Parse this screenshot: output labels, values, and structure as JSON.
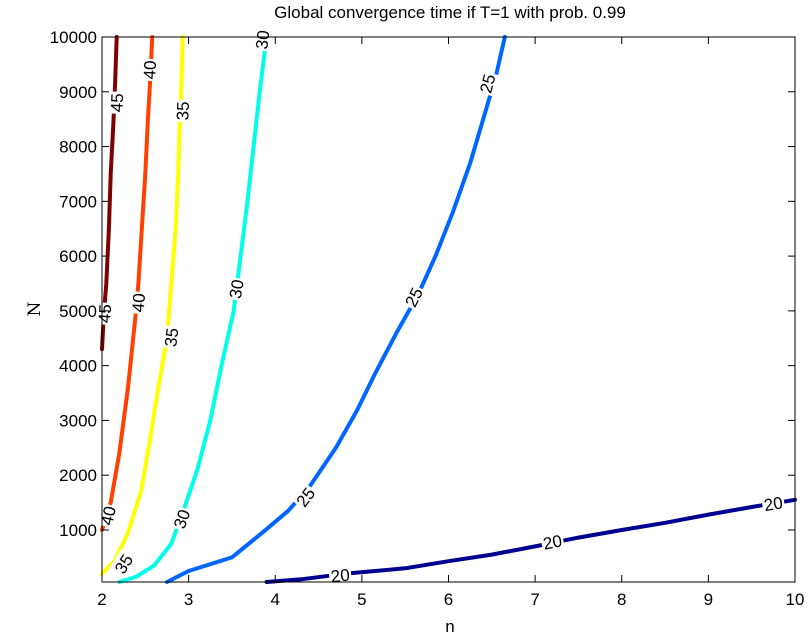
{
  "chart_data": {
    "type": "contour",
    "title": "Global convergence time if T=1 with prob. 0.99",
    "xlabel": "n",
    "ylabel": "N",
    "xlim": [
      2,
      10
    ],
    "ylim": [
      50,
      10000
    ],
    "xticks": [
      "2",
      "3",
      "4",
      "5",
      "6",
      "7",
      "8",
      "9",
      "10"
    ],
    "yticks": [
      "1000",
      "2000",
      "3000",
      "4000",
      "5000",
      "6000",
      "7000",
      "8000",
      "9000",
      "10000"
    ],
    "grid": false,
    "contours": [
      {
        "level": "45",
        "color": "#7f0000",
        "points": [
          [
            2.0,
            4300
          ],
          [
            2.02,
            4900
          ],
          [
            2.05,
            5500
          ],
          [
            2.08,
            6500
          ],
          [
            2.1,
            7500
          ],
          [
            2.13,
            8400
          ],
          [
            2.15,
            9100
          ],
          [
            2.17,
            10000
          ]
        ],
        "labels": [
          {
            "text": "45",
            "x": 2.03,
            "y": 4950
          },
          {
            "text": "45",
            "x": 2.17,
            "y": 8800
          }
        ]
      },
      {
        "level": "40",
        "color": "#ff4000",
        "points": [
          [
            2.0,
            1000
          ],
          [
            2.1,
            1500
          ],
          [
            2.2,
            2400
          ],
          [
            2.3,
            3600
          ],
          [
            2.38,
            4800
          ],
          [
            2.42,
            5500
          ],
          [
            2.46,
            6500
          ],
          [
            2.5,
            7500
          ],
          [
            2.53,
            8500
          ],
          [
            2.56,
            9300
          ],
          [
            2.58,
            10000
          ]
        ],
        "labels": [
          {
            "text": "40",
            "x": 2.07,
            "y": 1260
          },
          {
            "text": "40",
            "x": 2.42,
            "y": 5150
          },
          {
            "text": "40",
            "x": 2.55,
            "y": 9400
          }
        ]
      },
      {
        "level": "35",
        "color": "#ffff00",
        "points": [
          [
            2.0,
            200
          ],
          [
            2.15,
            450
          ],
          [
            2.3,
            950
          ],
          [
            2.45,
            1700
          ],
          [
            2.55,
            2600
          ],
          [
            2.65,
            3600
          ],
          [
            2.75,
            4500
          ],
          [
            2.8,
            5500
          ],
          [
            2.85,
            6500
          ],
          [
            2.88,
            7500
          ],
          [
            2.9,
            8500
          ],
          [
            2.92,
            9300
          ],
          [
            2.93,
            10000
          ]
        ],
        "labels": [
          {
            "text": "35",
            "x": 2.25,
            "y": 380
          },
          {
            "text": "35",
            "x": 2.8,
            "y": 4520
          },
          {
            "text": "35",
            "x": 2.93,
            "y": 8650
          }
        ]
      },
      {
        "level": "30",
        "color": "#00ffe8",
        "points": [
          [
            2.2,
            50
          ],
          [
            2.4,
            150
          ],
          [
            2.6,
            350
          ],
          [
            2.8,
            750
          ],
          [
            2.95,
            1400
          ],
          [
            3.1,
            2100
          ],
          [
            3.25,
            3000
          ],
          [
            3.38,
            4000
          ],
          [
            3.52,
            5000
          ],
          [
            3.6,
            6000
          ],
          [
            3.68,
            7000
          ],
          [
            3.75,
            8000
          ],
          [
            3.82,
            9000
          ],
          [
            3.9,
            10000
          ]
        ],
        "labels": [
          {
            "text": "30",
            "x": 2.92,
            "y": 1200
          },
          {
            "text": "30",
            "x": 3.55,
            "y": 5400
          },
          {
            "text": "30",
            "x": 3.85,
            "y": 9950
          }
        ]
      },
      {
        "level": "25",
        "color": "#0066ff",
        "points": [
          [
            2.75,
            50
          ],
          [
            3.0,
            250
          ],
          [
            3.5,
            500
          ],
          [
            3.85,
            950
          ],
          [
            4.15,
            1350
          ],
          [
            4.4,
            1800
          ],
          [
            4.7,
            2500
          ],
          [
            4.95,
            3200
          ],
          [
            5.15,
            3850
          ],
          [
            5.4,
            4600
          ],
          [
            5.65,
            5300
          ],
          [
            5.85,
            6000
          ],
          [
            6.05,
            6800
          ],
          [
            6.25,
            7700
          ],
          [
            6.4,
            8500
          ],
          [
            6.55,
            9300
          ],
          [
            6.65,
            10000
          ]
        ],
        "labels": [
          {
            "text": "25",
            "x": 4.35,
            "y": 1600
          },
          {
            "text": "25",
            "x": 5.6,
            "y": 5250
          },
          {
            "text": "25",
            "x": 6.45,
            "y": 9150
          }
        ]
      },
      {
        "level": "20",
        "color": "#000090",
        "points": [
          [
            3.9,
            50
          ],
          [
            4.3,
            100
          ],
          [
            4.8,
            200
          ],
          [
            5.5,
            300
          ],
          [
            6.0,
            430
          ],
          [
            6.5,
            550
          ],
          [
            7.0,
            700
          ],
          [
            7.5,
            860
          ],
          [
            8.0,
            1000
          ],
          [
            8.5,
            1130
          ],
          [
            9.0,
            1280
          ],
          [
            9.5,
            1420
          ],
          [
            10.0,
            1550
          ]
        ],
        "labels": [
          {
            "text": "20",
            "x": 4.75,
            "y": 170
          },
          {
            "text": "20",
            "x": 7.2,
            "y": 780
          },
          {
            "text": "20",
            "x": 9.75,
            "y": 1480
          }
        ]
      }
    ]
  }
}
